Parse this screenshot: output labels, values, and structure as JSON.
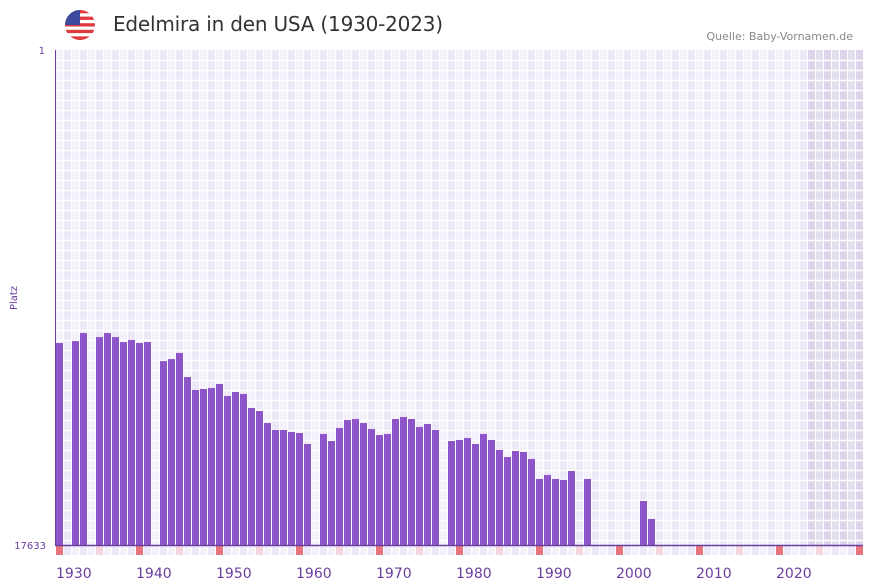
{
  "header": {
    "title": "Edelmira in den USA (1930-2023)",
    "source": "Quelle: Baby-Vornamen.de",
    "flag_icon": "us-flag-icon"
  },
  "colors": {
    "bar": "#8e55c8",
    "axis": "#6b3fa0",
    "decade_marker": "#e8737a",
    "mid_marker": "#f5d6de",
    "grid_a": "#f4f1fb",
    "grid_b": "#ede8f8",
    "future_shade": "#e2dced"
  },
  "chart_data": {
    "type": "bar",
    "title": "Edelmira in den USA (1930-2023)",
    "ylabel": "Platz",
    "xlabel": "",
    "y_scale": "log-reversed",
    "ylim": [
      1,
      17633
    ],
    "y_tick_labels": [
      "1",
      "17633"
    ],
    "x_range": [
      1930,
      2030
    ],
    "x_tick_labels": [
      "1930",
      "1940",
      "1950",
      "1960",
      "1970",
      "1980",
      "1990",
      "2000",
      "2010",
      "2020"
    ],
    "x_ticks": [
      1930,
      1940,
      1950,
      1960,
      1970,
      1980,
      1990,
      2000,
      2010,
      2020
    ],
    "shaded_from_year": 2024,
    "grid": true,
    "series": [
      {
        "name": "Platz",
        "points": [
          [
            1930,
            326
          ],
          [
            1932,
            314
          ],
          [
            1933,
            268
          ],
          [
            1935,
            290
          ],
          [
            1936,
            268
          ],
          [
            1937,
            290
          ],
          [
            1938,
            320
          ],
          [
            1939,
            307
          ],
          [
            1940,
            326
          ],
          [
            1941,
            320
          ],
          [
            1943,
            466
          ],
          [
            1944,
            448
          ],
          [
            1945,
            397
          ],
          [
            1946,
            639
          ],
          [
            1947,
            825
          ],
          [
            1948,
            809
          ],
          [
            1949,
            794
          ],
          [
            1950,
            733
          ],
          [
            1951,
            929
          ],
          [
            1952,
            859
          ],
          [
            1953,
            893
          ],
          [
            1954,
            1178
          ],
          [
            1955,
            1250
          ],
          [
            1956,
            1585
          ],
          [
            1957,
            1819
          ],
          [
            1958,
            1819
          ],
          [
            1959,
            1892
          ],
          [
            1960,
            1930
          ],
          [
            1961,
            2399
          ],
          [
            1963,
            1969
          ],
          [
            1964,
            2261
          ],
          [
            1965,
            1749
          ],
          [
            1966,
            1494
          ],
          [
            1967,
            1464
          ],
          [
            1968,
            1585
          ],
          [
            1969,
            1784
          ],
          [
            1970,
            2009
          ],
          [
            1971,
            1969
          ],
          [
            1972,
            1464
          ],
          [
            1973,
            1407
          ],
          [
            1974,
            1464
          ],
          [
            1975,
            1714
          ],
          [
            1976,
            1616
          ],
          [
            1977,
            1819
          ],
          [
            1979,
            2261
          ],
          [
            1980,
            2216
          ],
          [
            1981,
            2131
          ],
          [
            1982,
            2399
          ],
          [
            1983,
            1969
          ],
          [
            1984,
            2216
          ],
          [
            1985,
            2701
          ],
          [
            1986,
            3101
          ],
          [
            1987,
            2754
          ],
          [
            1988,
            2809
          ],
          [
            1989,
            3225
          ],
          [
            1990,
            4789
          ],
          [
            1991,
            4425
          ],
          [
            1992,
            4789
          ],
          [
            1993,
            4885
          ],
          [
            1994,
            4089
          ],
          [
            1996,
            4789
          ],
          [
            2003,
            7396
          ],
          [
            2004,
            10553
          ]
        ]
      }
    ]
  }
}
